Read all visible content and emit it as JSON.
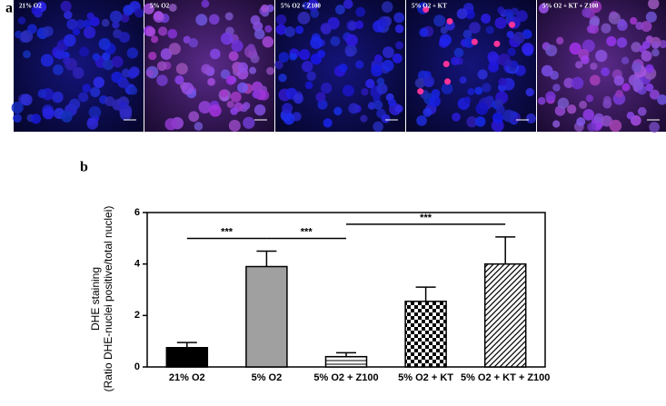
{
  "panel_a": {
    "label": "a",
    "images": [
      "21% O2",
      "5% O2",
      "5% O2 + Z100",
      "5% O2 + KT",
      "5% O2 + KT + Z100"
    ]
  },
  "panel_b": {
    "label": "b"
  },
  "chart_data": {
    "type": "bar",
    "y_label": [
      "DHE staining",
      "(Ratio DHE-nuclei positive/total nuclei)"
    ],
    "categories": [
      "21% O2",
      "5% O2",
      "5% O2 + Z100",
      "5% O2 + KT",
      "5% O2 + KT + Z100"
    ],
    "values": [
      0.75,
      3.9,
      0.4,
      2.55,
      4.0
    ],
    "errors": [
      0.2,
      0.6,
      0.15,
      0.55,
      1.05
    ],
    "colors": [
      "#000000",
      "#a0a0a0",
      "#ffffff",
      "#ffffff",
      "#ffffff"
    ],
    "patterns": [
      "solid",
      "solid",
      "horizontal",
      "checker",
      "diagonal"
    ],
    "ylim": [
      0,
      6
    ],
    "yticks": [
      0,
      2,
      4,
      6
    ],
    "significance": [
      {
        "label": "***",
        "from": 0,
        "to": 1
      },
      {
        "label": "***",
        "from": 1,
        "to": 2
      },
      {
        "label": "***",
        "from": 2,
        "to": 4
      }
    ]
  }
}
